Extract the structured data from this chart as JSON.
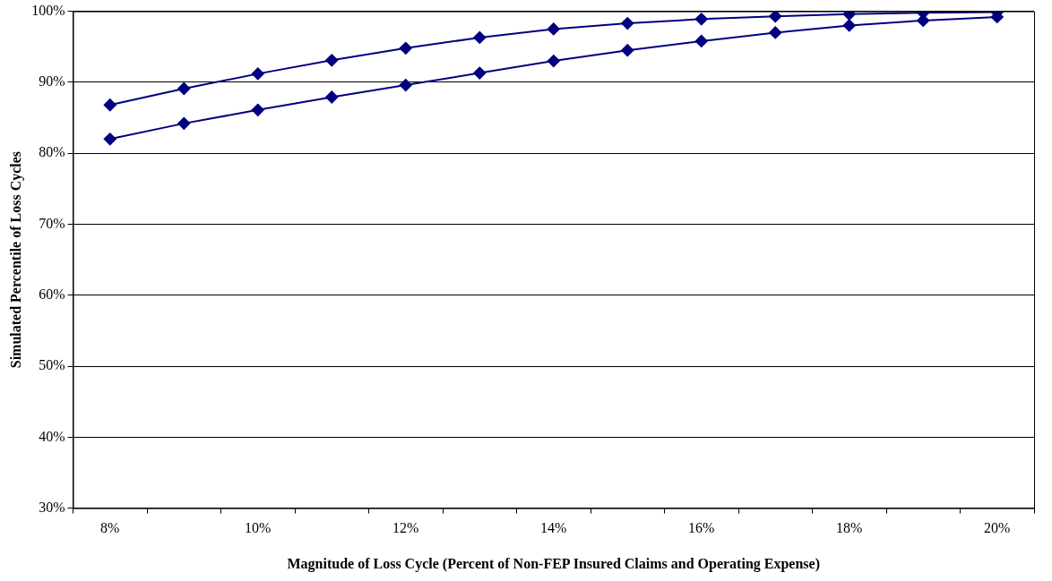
{
  "chart_data": {
    "type": "line",
    "xlabel": "Magnitude of Loss Cycle (Percent of Non-FEP Insured Claims and Operating Expense)",
    "ylabel": "Simulated Percentile of Loss Cycles",
    "categories": [
      "8%",
      null,
      "10%",
      null,
      "12%",
      null,
      "14%",
      null,
      "16%",
      null,
      "18%",
      null,
      "20%"
    ],
    "series": [
      {
        "color": "#000080",
        "values": [
          86.8,
          89.1,
          91.2,
          93.1,
          94.8,
          96.3,
          97.5,
          98.3,
          98.9,
          99.3,
          99.6,
          99.8,
          99.9
        ]
      },
      {
        "color": "#000080",
        "values": [
          82.0,
          84.2,
          86.1,
          87.9,
          89.6,
          91.3,
          93.0,
          94.5,
          95.8,
          97.0,
          98.0,
          98.7,
          99.2
        ]
      }
    ],
    "ylim": [
      30,
      100
    ],
    "yticks": [
      {
        "value": 30,
        "label": "30%"
      },
      {
        "value": 40,
        "label": "40%"
      },
      {
        "value": 50,
        "label": "50%"
      },
      {
        "value": 60,
        "label": "60%"
      },
      {
        "value": 70,
        "label": "70%"
      },
      {
        "value": 80,
        "label": "80%"
      },
      {
        "value": 90,
        "label": "90%"
      },
      {
        "value": 100,
        "label": "100%"
      }
    ],
    "grid": "y",
    "legend": false,
    "marker": "diamond",
    "line_style": "solid"
  }
}
